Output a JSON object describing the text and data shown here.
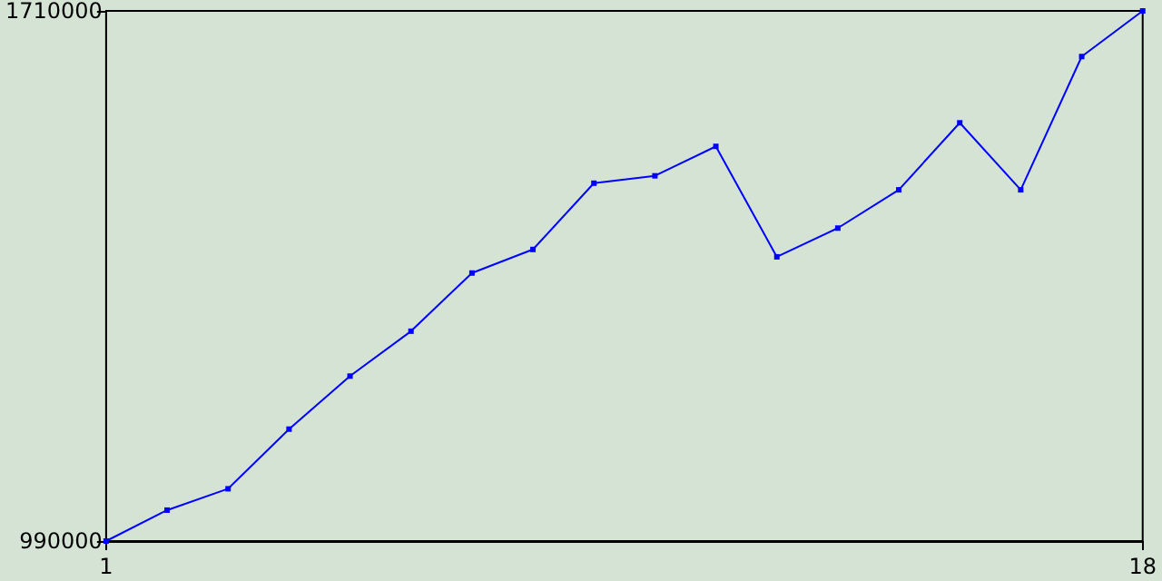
{
  "chart_data": {
    "type": "line",
    "x": [
      1,
      2,
      3,
      4,
      5,
      6,
      7,
      8,
      9,
      10,
      11,
      12,
      13,
      14,
      15,
      16,
      17,
      18
    ],
    "series": [
      {
        "color": "#0000ff",
        "values": [
          990000,
          1032000,
          1061000,
          1142000,
          1214000,
          1275000,
          1354000,
          1386000,
          1476000,
          1486000,
          1526000,
          1376000,
          1415000,
          1467000,
          1558000,
          1467000,
          1648000,
          1710000
        ]
      }
    ],
    "xlim": [
      1,
      18
    ],
    "xticks": [
      1,
      18
    ],
    "ylim": [
      990000,
      1710000
    ],
    "yticks": [
      990000,
      1710000
    ],
    "grid": false,
    "marker": "square",
    "line_style": "solid"
  }
}
